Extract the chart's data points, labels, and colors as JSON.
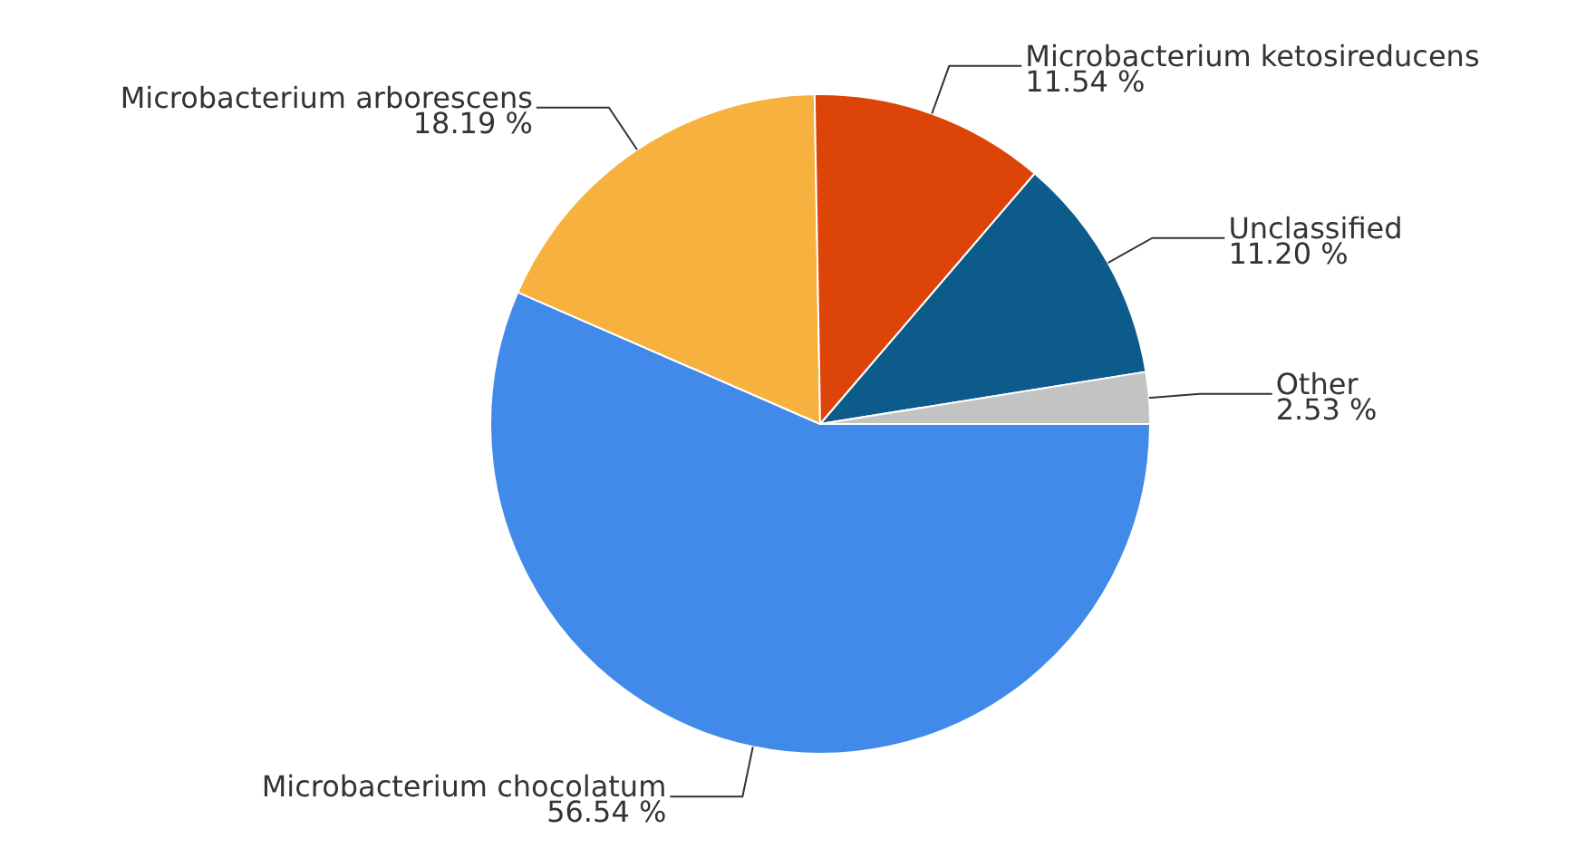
{
  "chart_data": {
    "type": "pie",
    "categories": [
      "Microbacterium chocolatum",
      "Microbacterium arborescens",
      "Microbacterium ketosireducens",
      "Unclassified",
      "Other"
    ],
    "values": [
      56.54,
      18.19,
      11.54,
      11.2,
      2.53
    ],
    "value_labels": [
      "56.54 %",
      "18.19 %",
      "11.54 %",
      "11.20 %",
      "2.53 %"
    ],
    "colors": [
      "#418ae9",
      "#f7b13f",
      "#dc4408",
      "#0d5b8b",
      "#c3c3c3"
    ],
    "legend": false
  }
}
